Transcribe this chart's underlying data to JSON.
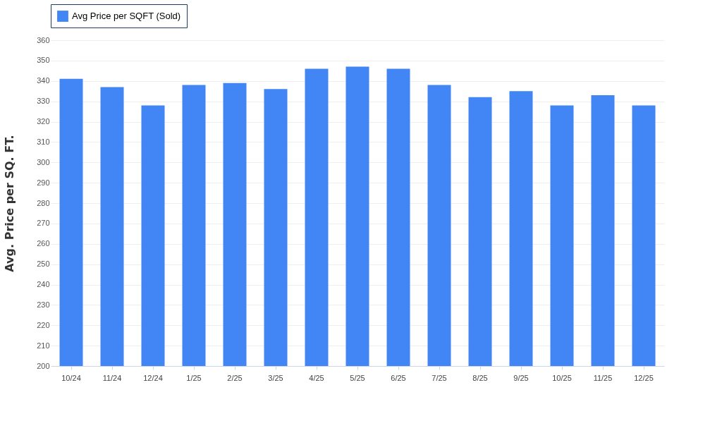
{
  "chart_data": {
    "type": "bar",
    "ylabel": "Avg. Price per SQ. FT.",
    "categories": [
      "10/24",
      "11/24",
      "12/24",
      "1/25",
      "2/25",
      "3/25",
      "4/25",
      "5/25",
      "6/25",
      "7/25",
      "8/25",
      "9/25",
      "10/25",
      "11/25",
      "12/25"
    ],
    "series": [
      {
        "name": "Avg Price per SQFT (Sold)",
        "color": "#4285f4",
        "values": [
          341,
          337,
          328,
          338,
          339,
          336,
          346,
          347,
          346,
          338,
          332,
          335,
          328,
          333,
          328
        ]
      }
    ],
    "ylim": [
      200,
      360
    ],
    "yticks": [
      200,
      210,
      220,
      230,
      240,
      250,
      260,
      270,
      280,
      290,
      300,
      310,
      320,
      330,
      340,
      350,
      360
    ],
    "grid": "y",
    "legend": "top"
  }
}
